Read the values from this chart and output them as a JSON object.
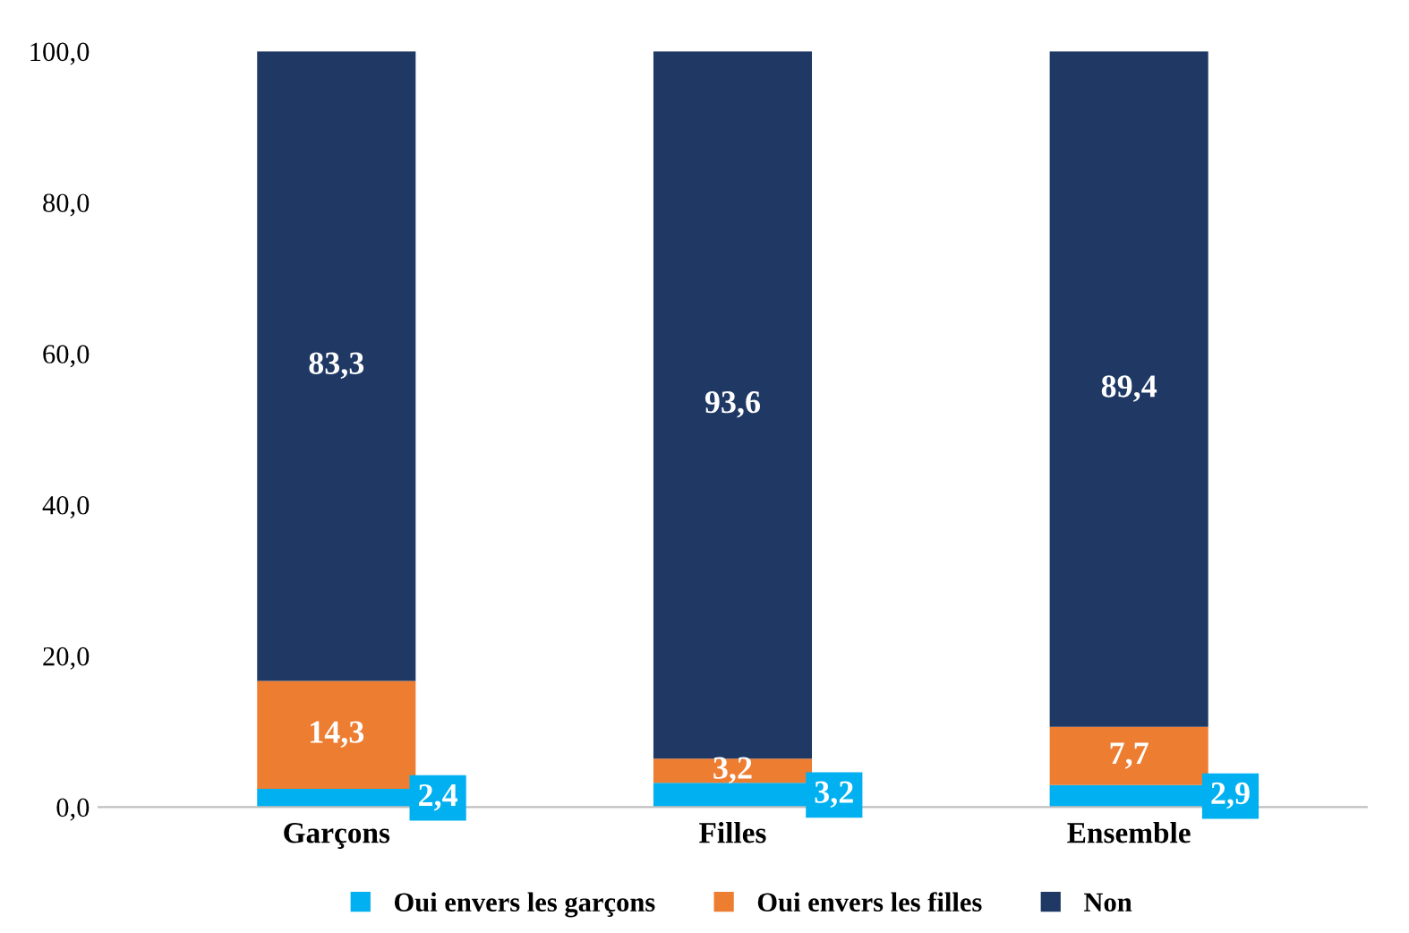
{
  "chart_data": {
    "type": "bar",
    "stacked": true,
    "categories": [
      "Garçons",
      "Filles",
      "Ensemble"
    ],
    "series": [
      {
        "name": "Oui envers les garçons",
        "color": "#00b0f0",
        "values": [
          2.4,
          3.2,
          2.9
        ],
        "value_labels": [
          "2,4",
          "3,2",
          "2,9"
        ]
      },
      {
        "name": "Oui envers les filles",
        "color": "#ed7d31",
        "values": [
          14.3,
          3.2,
          7.7
        ],
        "value_labels": [
          "14,3",
          "3,2",
          "7,7"
        ]
      },
      {
        "name": "Non",
        "color": "#1f3864",
        "values": [
          83.3,
          93.6,
          89.4
        ],
        "value_labels": [
          "83,3",
          "93,6",
          "89,4"
        ]
      }
    ],
    "ylim": [
      0,
      100
    ],
    "yticks": [
      {
        "value": 0,
        "label": "0,0"
      },
      {
        "value": 20,
        "label": "20,0"
      },
      {
        "value": 40,
        "label": "40,0"
      },
      {
        "value": 60,
        "label": "60,0"
      },
      {
        "value": 80,
        "label": "80,0"
      },
      {
        "value": 100,
        "label": "100,0"
      }
    ],
    "grid": false,
    "legend": "bottom"
  }
}
